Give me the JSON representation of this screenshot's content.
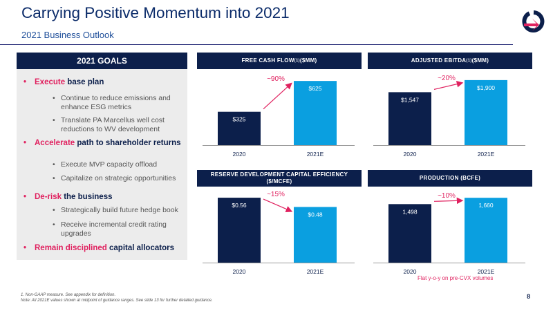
{
  "header": {
    "title": "Carrying Positive Momentum into 2021",
    "subtitle": "2021 Business Outlook"
  },
  "goals": {
    "title": "2021 GOALS",
    "items": [
      {
        "highlight": "Execute",
        "rest": " base plan",
        "subs": [
          "Continue to reduce emissions and enhance ESG metrics",
          "Translate PA Marcellus well cost reductions to WV development"
        ]
      },
      {
        "highlight": "Accelerate",
        "rest": " path to shareholder returns",
        "subs": [
          "Execute MVP capacity offload",
          "Capitalize on strategic opportunities"
        ]
      },
      {
        "highlight": "De-risk",
        "rest": " the business",
        "subs": [
          "Strategically build future hedge book",
          "Receive incremental credit rating upgrades"
        ]
      },
      {
        "highlight": "Remain disciplined",
        "rest": " capital allocators",
        "subs": []
      }
    ]
  },
  "charts": {
    "fcf": {
      "title": "FREE CASH FLOW",
      "sup": "(1)",
      "unit": " ($MM)"
    },
    "ebitda": {
      "title": "ADJUSTED EBITDA",
      "sup": "(1)",
      "unit": " ($MM)"
    },
    "rdce": {
      "title": "RESERVE DEVELOPMENT CAPITAL EFFICIENCY",
      "unit": "($/MCFE)"
    },
    "production": {
      "title": "PRODUCTION (BCFE)"
    }
  },
  "chart_data": [
    {
      "type": "bar",
      "title": "FREE CASH FLOW(1) ($MM)",
      "categories": [
        "2020",
        "2021E"
      ],
      "values": [
        325,
        625
      ],
      "data_labels": [
        "$325",
        "$625"
      ],
      "ylim": [
        0,
        700
      ],
      "change_label": "~90%",
      "colors": [
        "#0c1f4b",
        "#0a9fe0"
      ]
    },
    {
      "type": "bar",
      "title": "ADJUSTED EBITDA(1) ($MM)",
      "categories": [
        "2020",
        "2021E"
      ],
      "values": [
        1547,
        1900
      ],
      "data_labels": [
        "$1,547",
        "$1,900"
      ],
      "ylim": [
        0,
        2100
      ],
      "change_label": "~20%",
      "colors": [
        "#0c1f4b",
        "#0a9fe0"
      ]
    },
    {
      "type": "bar",
      "title": "RESERVE DEVELOPMENT CAPITAL EFFICIENCY ($/MCFE)",
      "categories": [
        "2020",
        "2021E"
      ],
      "values": [
        0.56,
        0.48
      ],
      "data_labels": [
        "$0.56",
        "$0.48"
      ],
      "ylim": [
        0,
        0.62
      ],
      "change_label": "~15%",
      "colors": [
        "#0c1f4b",
        "#0a9fe0"
      ]
    },
    {
      "type": "bar",
      "title": "PRODUCTION (BCFE)",
      "categories": [
        "2020",
        "2021E"
      ],
      "values": [
        1498,
        1660
      ],
      "data_labels": [
        "1,498",
        "1,660"
      ],
      "ylim": [
        0,
        1840
      ],
      "change_label": "~10%",
      "colors": [
        "#0c1f4b",
        "#0a9fe0"
      ]
    }
  ],
  "notes": {
    "production_note": "Flat y-o-y on pre-CVX volumes",
    "footnote1": "1.     Non-GAAP measure. See appendix for definition.",
    "footnote2": "Note: All 2021E values shown at midpoint of guidance ranges. See slide 13 for further detailed guidance.",
    "page_number": "8"
  },
  "colors": {
    "navy": "#0c1f4b",
    "light_blue": "#0a9fe0",
    "accent": "#e0215f",
    "panel_bg": "#ececec"
  },
  "logo": {
    "icon": "q-arrow-logo-icon"
  }
}
